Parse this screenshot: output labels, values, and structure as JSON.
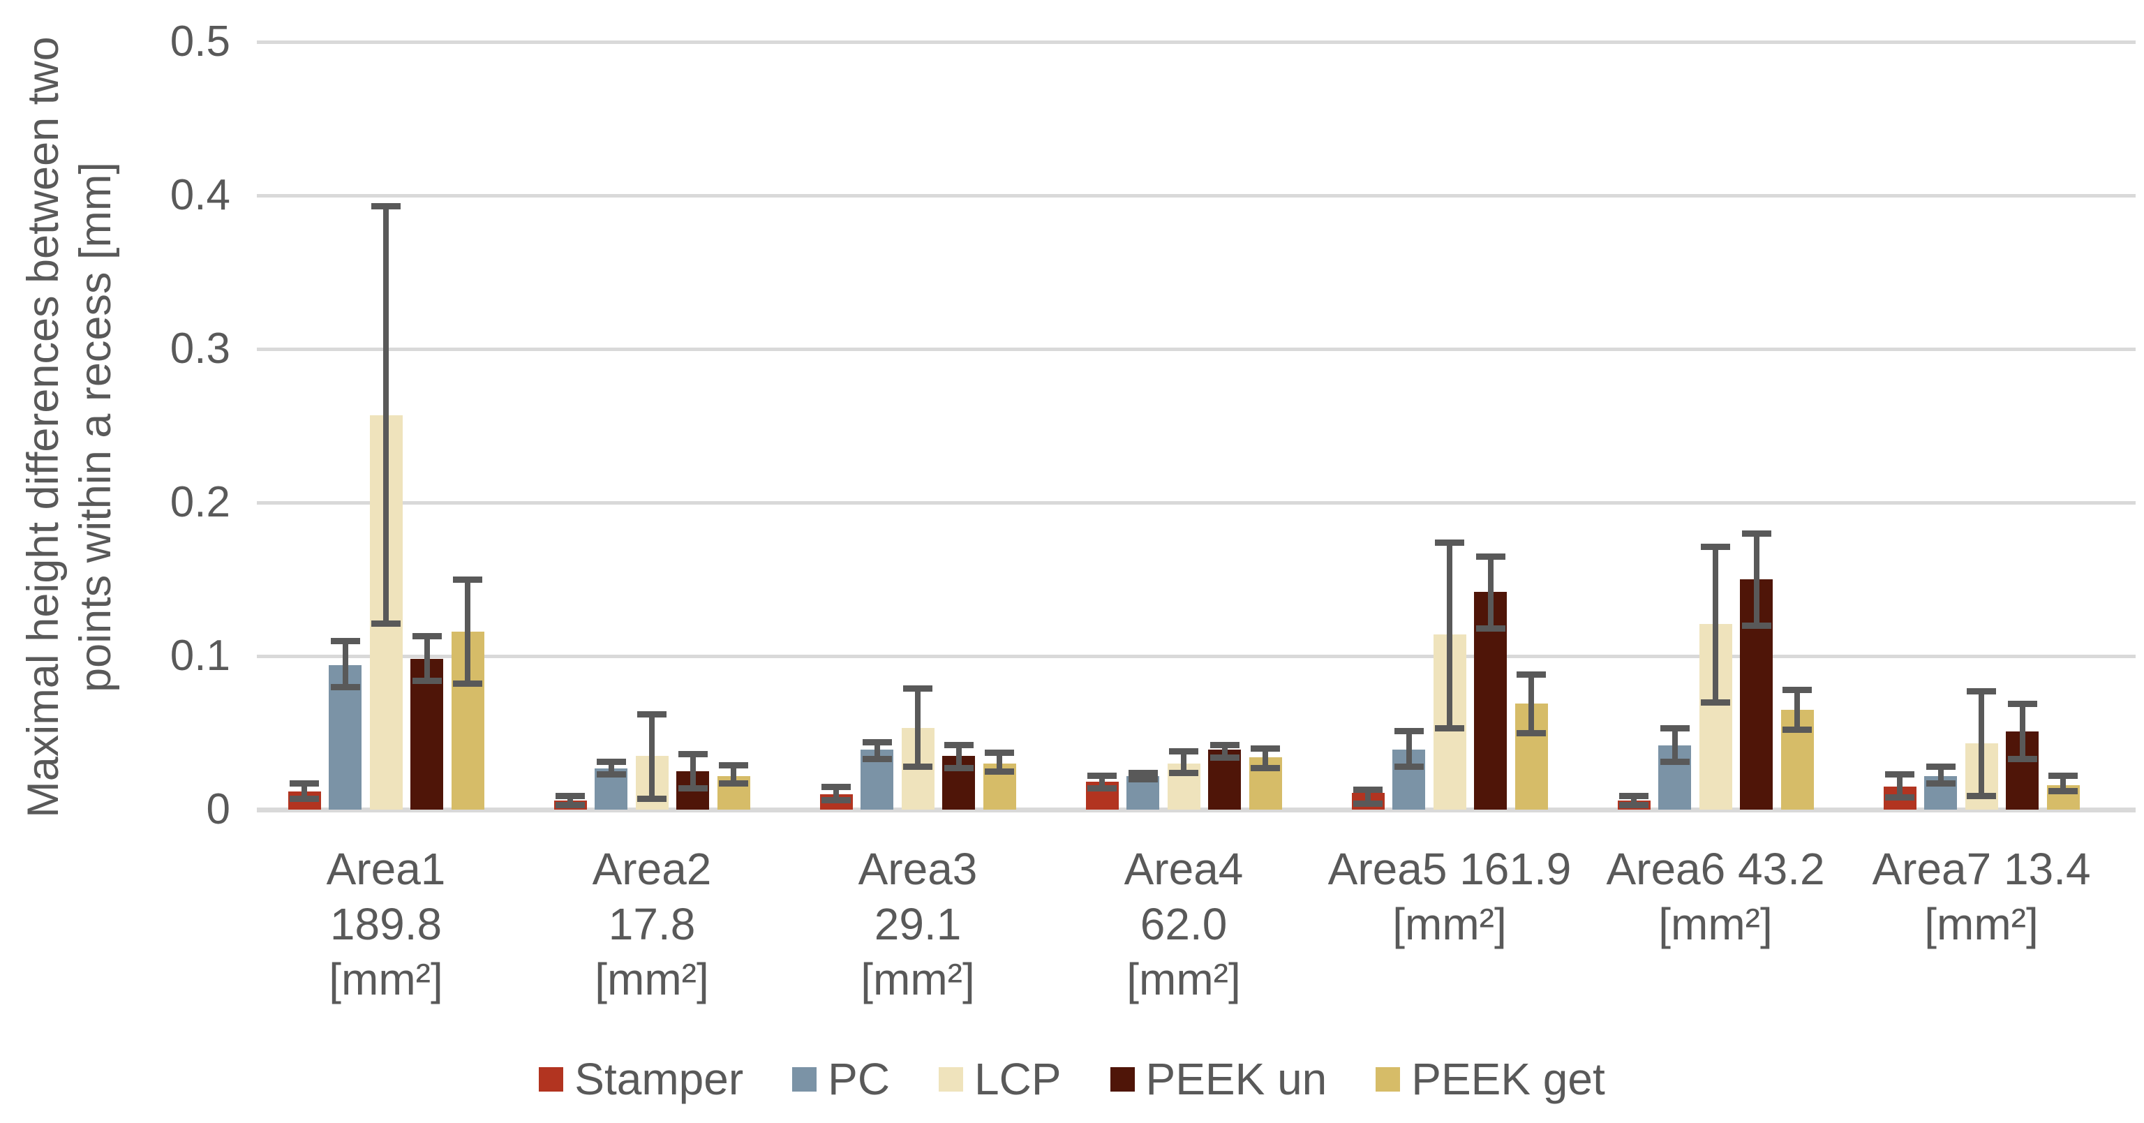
{
  "chart_data": {
    "type": "bar",
    "title": "",
    "ylabel": "Maximal height differences between two\npoints within a recess [mm]",
    "ylim": [
      0,
      0.5
    ],
    "yticks": [
      0,
      0.1,
      0.2,
      0.3,
      0.4,
      0.5
    ],
    "ytick_labels": [
      "0",
      "0.1",
      "0.2",
      "0.3",
      "0.4",
      "0.5"
    ],
    "grid": true,
    "legend_position": "bottom",
    "categories": [
      "Area1 189.8 [mm²]",
      "Area2 17.8 [mm²]",
      "Area3 29.1 [mm²]",
      "Area4 62.0 [mm²]",
      "Area5 161.9 [mm²]",
      "Area6 43.2 [mm²]",
      "Area7 13.4 [mm²]"
    ],
    "category_label_lines": [
      "Area1\n189.8\n[mm²]",
      "Area2\n17.8\n[mm²]",
      "Area3\n29.1\n[mm²]",
      "Area4\n62.0\n[mm²]",
      "Area5 161.9\n[mm²]",
      "Area6 43.2\n[mm²]",
      "Area7 13.4\n[mm²]"
    ],
    "series": [
      {
        "name": "Stamper",
        "color": "#b23420",
        "values": [
          0.012,
          0.006,
          0.01,
          0.018,
          0.011,
          0.006,
          0.015
        ],
        "whisker_lo": [
          0.007,
          0.003,
          0.006,
          0.014,
          0.004,
          0.003,
          0.008
        ],
        "whisker_hi": [
          0.017,
          0.009,
          0.015,
          0.022,
          0.013,
          0.009,
          0.023
        ]
      },
      {
        "name": "PC",
        "color": "#7b93a6",
        "values": [
          0.094,
          0.027,
          0.039,
          0.022,
          0.039,
          0.042,
          0.022
        ],
        "whisker_lo": [
          0.08,
          0.023,
          0.033,
          0.02,
          0.028,
          0.031,
          0.017
        ],
        "whisker_hi": [
          0.11,
          0.031,
          0.044,
          0.024,
          0.051,
          0.053,
          0.028
        ]
      },
      {
        "name": "LCP",
        "color": "#efe3bc",
        "values": [
          0.257,
          0.035,
          0.053,
          0.03,
          0.114,
          0.121,
          0.043
        ],
        "whisker_lo": [
          0.121,
          0.007,
          0.028,
          0.024,
          0.053,
          0.07,
          0.009
        ],
        "whisker_hi": [
          0.393,
          0.062,
          0.079,
          0.038,
          0.174,
          0.171,
          0.077
        ]
      },
      {
        "name": "PEEK un",
        "color": "#4f1508",
        "values": [
          0.098,
          0.025,
          0.035,
          0.039,
          0.142,
          0.15,
          0.051
        ],
        "whisker_lo": [
          0.084,
          0.014,
          0.027,
          0.034,
          0.118,
          0.12,
          0.033
        ],
        "whisker_hi": [
          0.113,
          0.036,
          0.042,
          0.042,
          0.165,
          0.18,
          0.069
        ]
      },
      {
        "name": "PEEK get",
        "color": "#d6bc68",
        "values": [
          0.116,
          0.022,
          0.03,
          0.034,
          0.069,
          0.065,
          0.016
        ],
        "whisker_lo": [
          0.082,
          0.017,
          0.025,
          0.027,
          0.05,
          0.052,
          0.012
        ],
        "whisker_hi": [
          0.15,
          0.029,
          0.037,
          0.04,
          0.088,
          0.078,
          0.022
        ]
      }
    ],
    "colors": {
      "axis_text": "#595959",
      "gridline": "#d9d9d9",
      "error_bar": "#595959",
      "background": "#ffffff"
    }
  }
}
